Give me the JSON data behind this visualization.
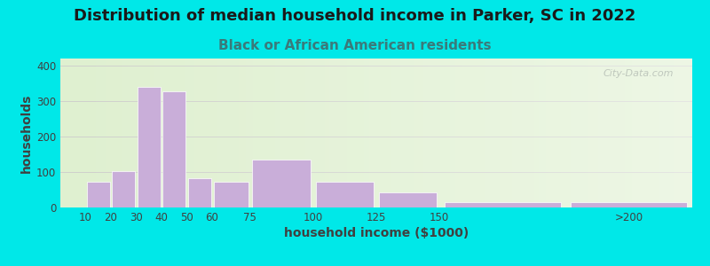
{
  "title": "Distribution of median household income in Parker, SC in 2022",
  "subtitle": "Black or African American residents",
  "xlabel": "household income ($1000)",
  "ylabel": "households",
  "bar_labels": [
    "10",
    "20",
    "30",
    "40",
    "50",
    "60",
    "75",
    "100",
    "125",
    "150",
    ">200"
  ],
  "bar_values": [
    72,
    103,
    340,
    328,
    82,
    73,
    135,
    73,
    42,
    14,
    15
  ],
  "bar_positions": [
    10,
    20,
    30,
    40,
    50,
    60,
    75,
    100,
    125,
    150,
    200
  ],
  "bar_widths": [
    10,
    10,
    10,
    10,
    10,
    15,
    25,
    25,
    25,
    50,
    50
  ],
  "bar_color": "#c9aed9",
  "bar_edgecolor": "#ffffff",
  "ylim": [
    0,
    420
  ],
  "yticks": [
    0,
    100,
    200,
    300,
    400
  ],
  "xlim": [
    0,
    250
  ],
  "xtick_positions": [
    10,
    20,
    30,
    40,
    50,
    60,
    75,
    100,
    125,
    150,
    225
  ],
  "xtick_labels": [
    "10",
    "20",
    "30",
    "40",
    "50",
    "60",
    "75",
    "100",
    "125",
    "150",
    ">200"
  ],
  "background_outer": "#00e8e8",
  "background_inner": "#dff0d0",
  "title_fontsize": 13,
  "subtitle_fontsize": 11,
  "title_color": "#1a1a1a",
  "subtitle_color": "#3a7a7a",
  "xlabel_fontsize": 10,
  "ylabel_fontsize": 10,
  "watermark": "City-Data.com",
  "grid_color": "#cccccc",
  "tick_fontsize": 8.5
}
